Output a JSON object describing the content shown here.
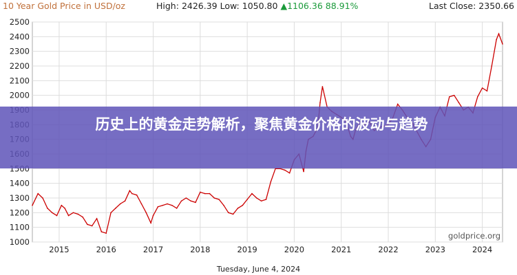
{
  "header": {
    "title": "10 Year Gold Price in USD/oz",
    "high_label": "High:",
    "high_value": "2426.39",
    "low_label": "Low:",
    "low_value": "1050.80",
    "change_arrow": "▲",
    "change_value": "1106.36",
    "change_percent": "88.91%",
    "last_close_label": "Last Close:",
    "last_close_value": "2350.66"
  },
  "banner": {
    "text": "历史上的黄金走势解析，聚焦黄金价格的波动与趋势"
  },
  "watermark": "goldprice.org",
  "footer_date": "Tuesday, June 4, 2024",
  "colors": {
    "line": "#cc0000",
    "grid": "#dddddd",
    "title": "#c0703a",
    "change": "#1a9a3a",
    "banner": "#5f55b9"
  },
  "chart_data": {
    "type": "line",
    "title": "10 Year Gold Price in USD/oz",
    "xlabel": "",
    "ylabel": "",
    "ylim": [
      1000,
      2500
    ],
    "xlim": [
      2014.43,
      2024.43
    ],
    "y_ticks": [
      1000,
      1100,
      1200,
      1300,
      1400,
      1500,
      1600,
      1700,
      1800,
      1900,
      2000,
      2100,
      2200,
      2300,
      2400,
      2500
    ],
    "x_ticks": [
      2015,
      2016,
      2017,
      2018,
      2019,
      2020,
      2021,
      2022,
      2023,
      2024
    ],
    "grid": true,
    "series": [
      {
        "x": [
          2014.43,
          2014.55,
          2014.65,
          2014.75,
          2014.85,
          2014.95,
          2015.05,
          2015.12,
          2015.2,
          2015.3,
          2015.4,
          2015.5,
          2015.6,
          2015.7,
          2015.8,
          2015.9,
          2016.0,
          2016.1,
          2016.2,
          2016.3,
          2016.4,
          2016.5,
          2016.55,
          2016.65,
          2016.75,
          2016.85,
          2016.95,
          2017.0,
          2017.1,
          2017.2,
          2017.3,
          2017.4,
          2017.5,
          2017.6,
          2017.7,
          2017.8,
          2017.9,
          2018.0,
          2018.1,
          2018.2,
          2018.3,
          2018.4,
          2018.5,
          2018.6,
          2018.7,
          2018.8,
          2018.9,
          2019.0,
          2019.1,
          2019.2,
          2019.3,
          2019.4,
          2019.5,
          2019.6,
          2019.7,
          2019.8,
          2019.9,
          2020.0,
          2020.1,
          2020.2,
          2020.25,
          2020.3,
          2020.4,
          2020.5,
          2020.55,
          2020.6,
          2020.7,
          2020.8,
          2020.9,
          2021.0,
          2021.1,
          2021.2,
          2021.25,
          2021.3,
          2021.4,
          2021.5,
          2021.6,
          2021.7,
          2021.8,
          2021.9,
          2022.0,
          2022.1,
          2022.2,
          2022.3,
          2022.4,
          2022.5,
          2022.6,
          2022.7,
          2022.8,
          2022.9,
          2023.0,
          2023.1,
          2023.2,
          2023.3,
          2023.4,
          2023.5,
          2023.6,
          2023.7,
          2023.8,
          2023.9,
          2024.0,
          2024.1,
          2024.2,
          2024.3,
          2024.35,
          2024.43
        ],
        "y": [
          1250,
          1330,
          1300,
          1230,
          1200,
          1180,
          1250,
          1230,
          1180,
          1200,
          1190,
          1170,
          1120,
          1110,
          1160,
          1070,
          1060,
          1200,
          1230,
          1260,
          1280,
          1350,
          1330,
          1320,
          1260,
          1200,
          1130,
          1180,
          1240,
          1250,
          1260,
          1250,
          1230,
          1280,
          1300,
          1280,
          1270,
          1340,
          1330,
          1330,
          1300,
          1290,
          1250,
          1200,
          1190,
          1230,
          1250,
          1290,
          1330,
          1300,
          1280,
          1290,
          1410,
          1500,
          1500,
          1490,
          1470,
          1560,
          1600,
          1480,
          1620,
          1700,
          1720,
          1780,
          1950,
          2060,
          1920,
          1890,
          1870,
          1850,
          1820,
          1720,
          1700,
          1760,
          1820,
          1800,
          1820,
          1760,
          1780,
          1790,
          1800,
          1850,
          1940,
          1900,
          1850,
          1820,
          1760,
          1700,
          1650,
          1700,
          1850,
          1920,
          1860,
          1990,
          2000,
          1950,
          1900,
          1920,
          1880,
          1990,
          2050,
          2030,
          2200,
          2380,
          2420,
          2350
        ]
      }
    ]
  }
}
